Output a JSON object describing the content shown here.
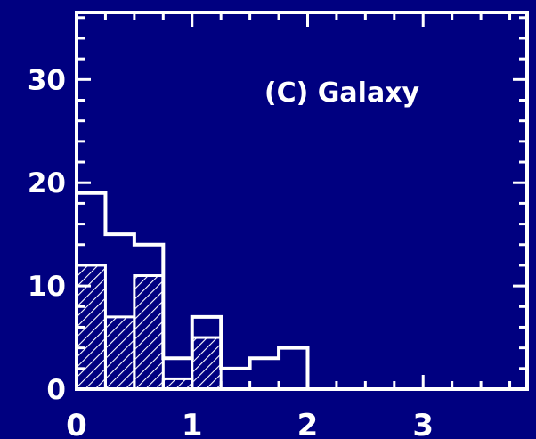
{
  "chart_data": {
    "type": "histogram",
    "annotation": "(C) Galaxy",
    "x_ticks": [
      0,
      1,
      2,
      3
    ],
    "x_tick_labels": [
      "0",
      "1",
      "2",
      "3"
    ],
    "y_ticks": [
      0,
      10,
      20,
      30
    ],
    "y_tick_labels": [
      "0",
      "10",
      "20",
      "30"
    ],
    "xlim": [
      0,
      3.9
    ],
    "ylim": [
      0,
      36.5
    ],
    "bin_width": 0.25,
    "bin_edges": [
      0,
      0.25,
      0.5,
      0.75,
      1.0,
      1.25,
      1.5,
      1.75,
      2.0,
      2.25,
      2.5,
      2.75,
      3.0,
      3.25,
      3.5,
      3.75
    ],
    "series": [
      {
        "style": "outline",
        "values": [
          19,
          15,
          14,
          3,
          7,
          2,
          3,
          4,
          0,
          0,
          0,
          0,
          0,
          0,
          0
        ]
      },
      {
        "style": "hatched",
        "values": [
          12,
          7,
          11,
          1,
          5,
          0,
          0,
          0,
          0,
          0,
          0,
          0,
          0,
          0,
          0
        ]
      }
    ],
    "grid": false,
    "legend": "none",
    "colors": {
      "background": "#000080",
      "foreground": "#ffffff"
    }
  }
}
